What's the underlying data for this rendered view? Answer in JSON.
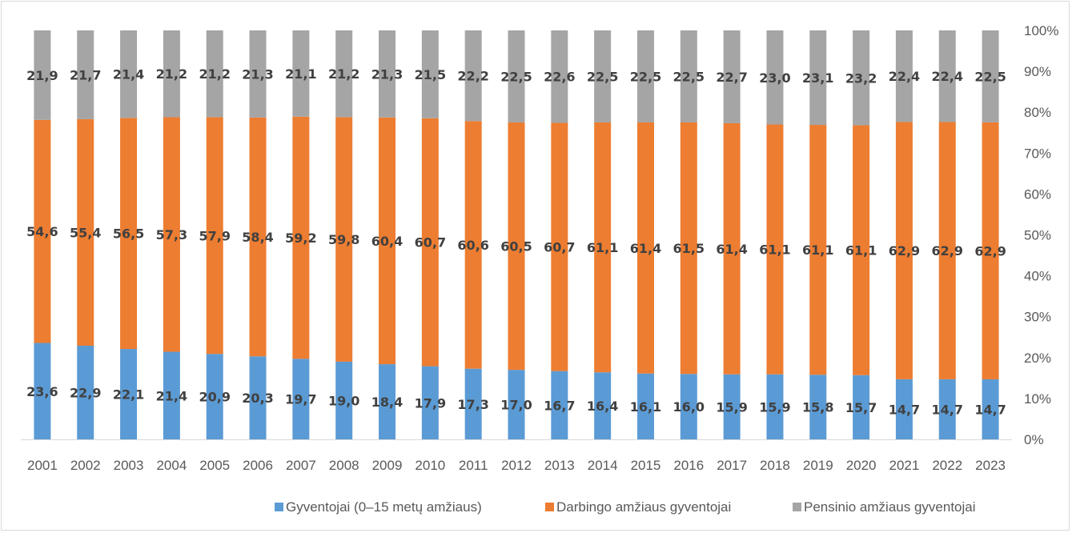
{
  "chart_data": {
    "type": "bar",
    "stacked": true,
    "percent_stacked": true,
    "title": "",
    "xlabel": "",
    "ylabel": "",
    "y_axis_position": "right",
    "ylim": [
      0,
      100
    ],
    "y_ticks": [
      "0%",
      "10%",
      "20%",
      "30%",
      "40%",
      "50%",
      "60%",
      "70%",
      "80%",
      "90%",
      "100%"
    ],
    "grid": false,
    "legend_position": "bottom",
    "categories": [
      "2001",
      "2002",
      "2003",
      "2004",
      "2005",
      "2006",
      "2007",
      "2008",
      "2009",
      "2010",
      "2011",
      "2012",
      "2013",
      "2014",
      "2015",
      "2016",
      "2017",
      "2018",
      "2019",
      "2020",
      "2021",
      "2022",
      "2023"
    ],
    "series": [
      {
        "name": "Gyventojai (0–15 metų amžiaus)",
        "color": "#5b9bd5",
        "values": [
          23.6,
          22.9,
          22.1,
          21.4,
          20.9,
          20.3,
          19.7,
          19.0,
          18.4,
          17.9,
          17.3,
          17.0,
          16.7,
          16.4,
          16.1,
          16.0,
          15.9,
          15.9,
          15.8,
          15.7,
          14.7,
          14.7,
          14.7
        ],
        "labels": [
          "23,6",
          "22,9",
          "22,1",
          "21,4",
          "20,9",
          "20,3",
          "19,7",
          "19,0",
          "18,4",
          "17,9",
          "17,3",
          "17,0",
          "16,7",
          "16,4",
          "16,1",
          "16,0",
          "15,9",
          "15,9",
          "15,8",
          "15,7",
          "14,7",
          "14,7",
          "14,7"
        ]
      },
      {
        "name": "Darbingo amžiaus gyventojai",
        "color": "#ed7d31",
        "values": [
          54.6,
          55.4,
          56.5,
          57.3,
          57.9,
          58.4,
          59.2,
          59.8,
          60.4,
          60.7,
          60.6,
          60.5,
          60.7,
          61.1,
          61.4,
          61.5,
          61.4,
          61.1,
          61.1,
          61.1,
          62.9,
          62.9,
          62.9
        ],
        "labels": [
          "54,6",
          "55,4",
          "56,5",
          "57,3",
          "57,9",
          "58,4",
          "59,2",
          "59,8",
          "60,4",
          "60,7",
          "60,6",
          "60,5",
          "60,7",
          "61,1",
          "61,4",
          "61,5",
          "61,4",
          "61,1",
          "61,1",
          "61,1",
          "62,9",
          "62,9",
          "62,9"
        ]
      },
      {
        "name": "Pensinio amžiaus gyventojai",
        "color": "#a5a5a5",
        "values": [
          21.9,
          21.7,
          21.4,
          21.2,
          21.2,
          21.3,
          21.1,
          21.2,
          21.3,
          21.5,
          22.2,
          22.5,
          22.6,
          22.5,
          22.5,
          22.5,
          22.7,
          23.0,
          23.1,
          23.2,
          22.4,
          22.4,
          22.5
        ],
        "labels": [
          "21,9",
          "21,7",
          "21,4",
          "21,2",
          "21,2",
          "21,3",
          "21,1",
          "21,2",
          "21,3",
          "21,5",
          "22,2",
          "22,5",
          "22,6",
          "22,5",
          "22,5",
          "22,5",
          "22,7",
          "23,0",
          "23,1",
          "23,2",
          "22,4",
          "22,4",
          "22,5"
        ]
      }
    ]
  }
}
